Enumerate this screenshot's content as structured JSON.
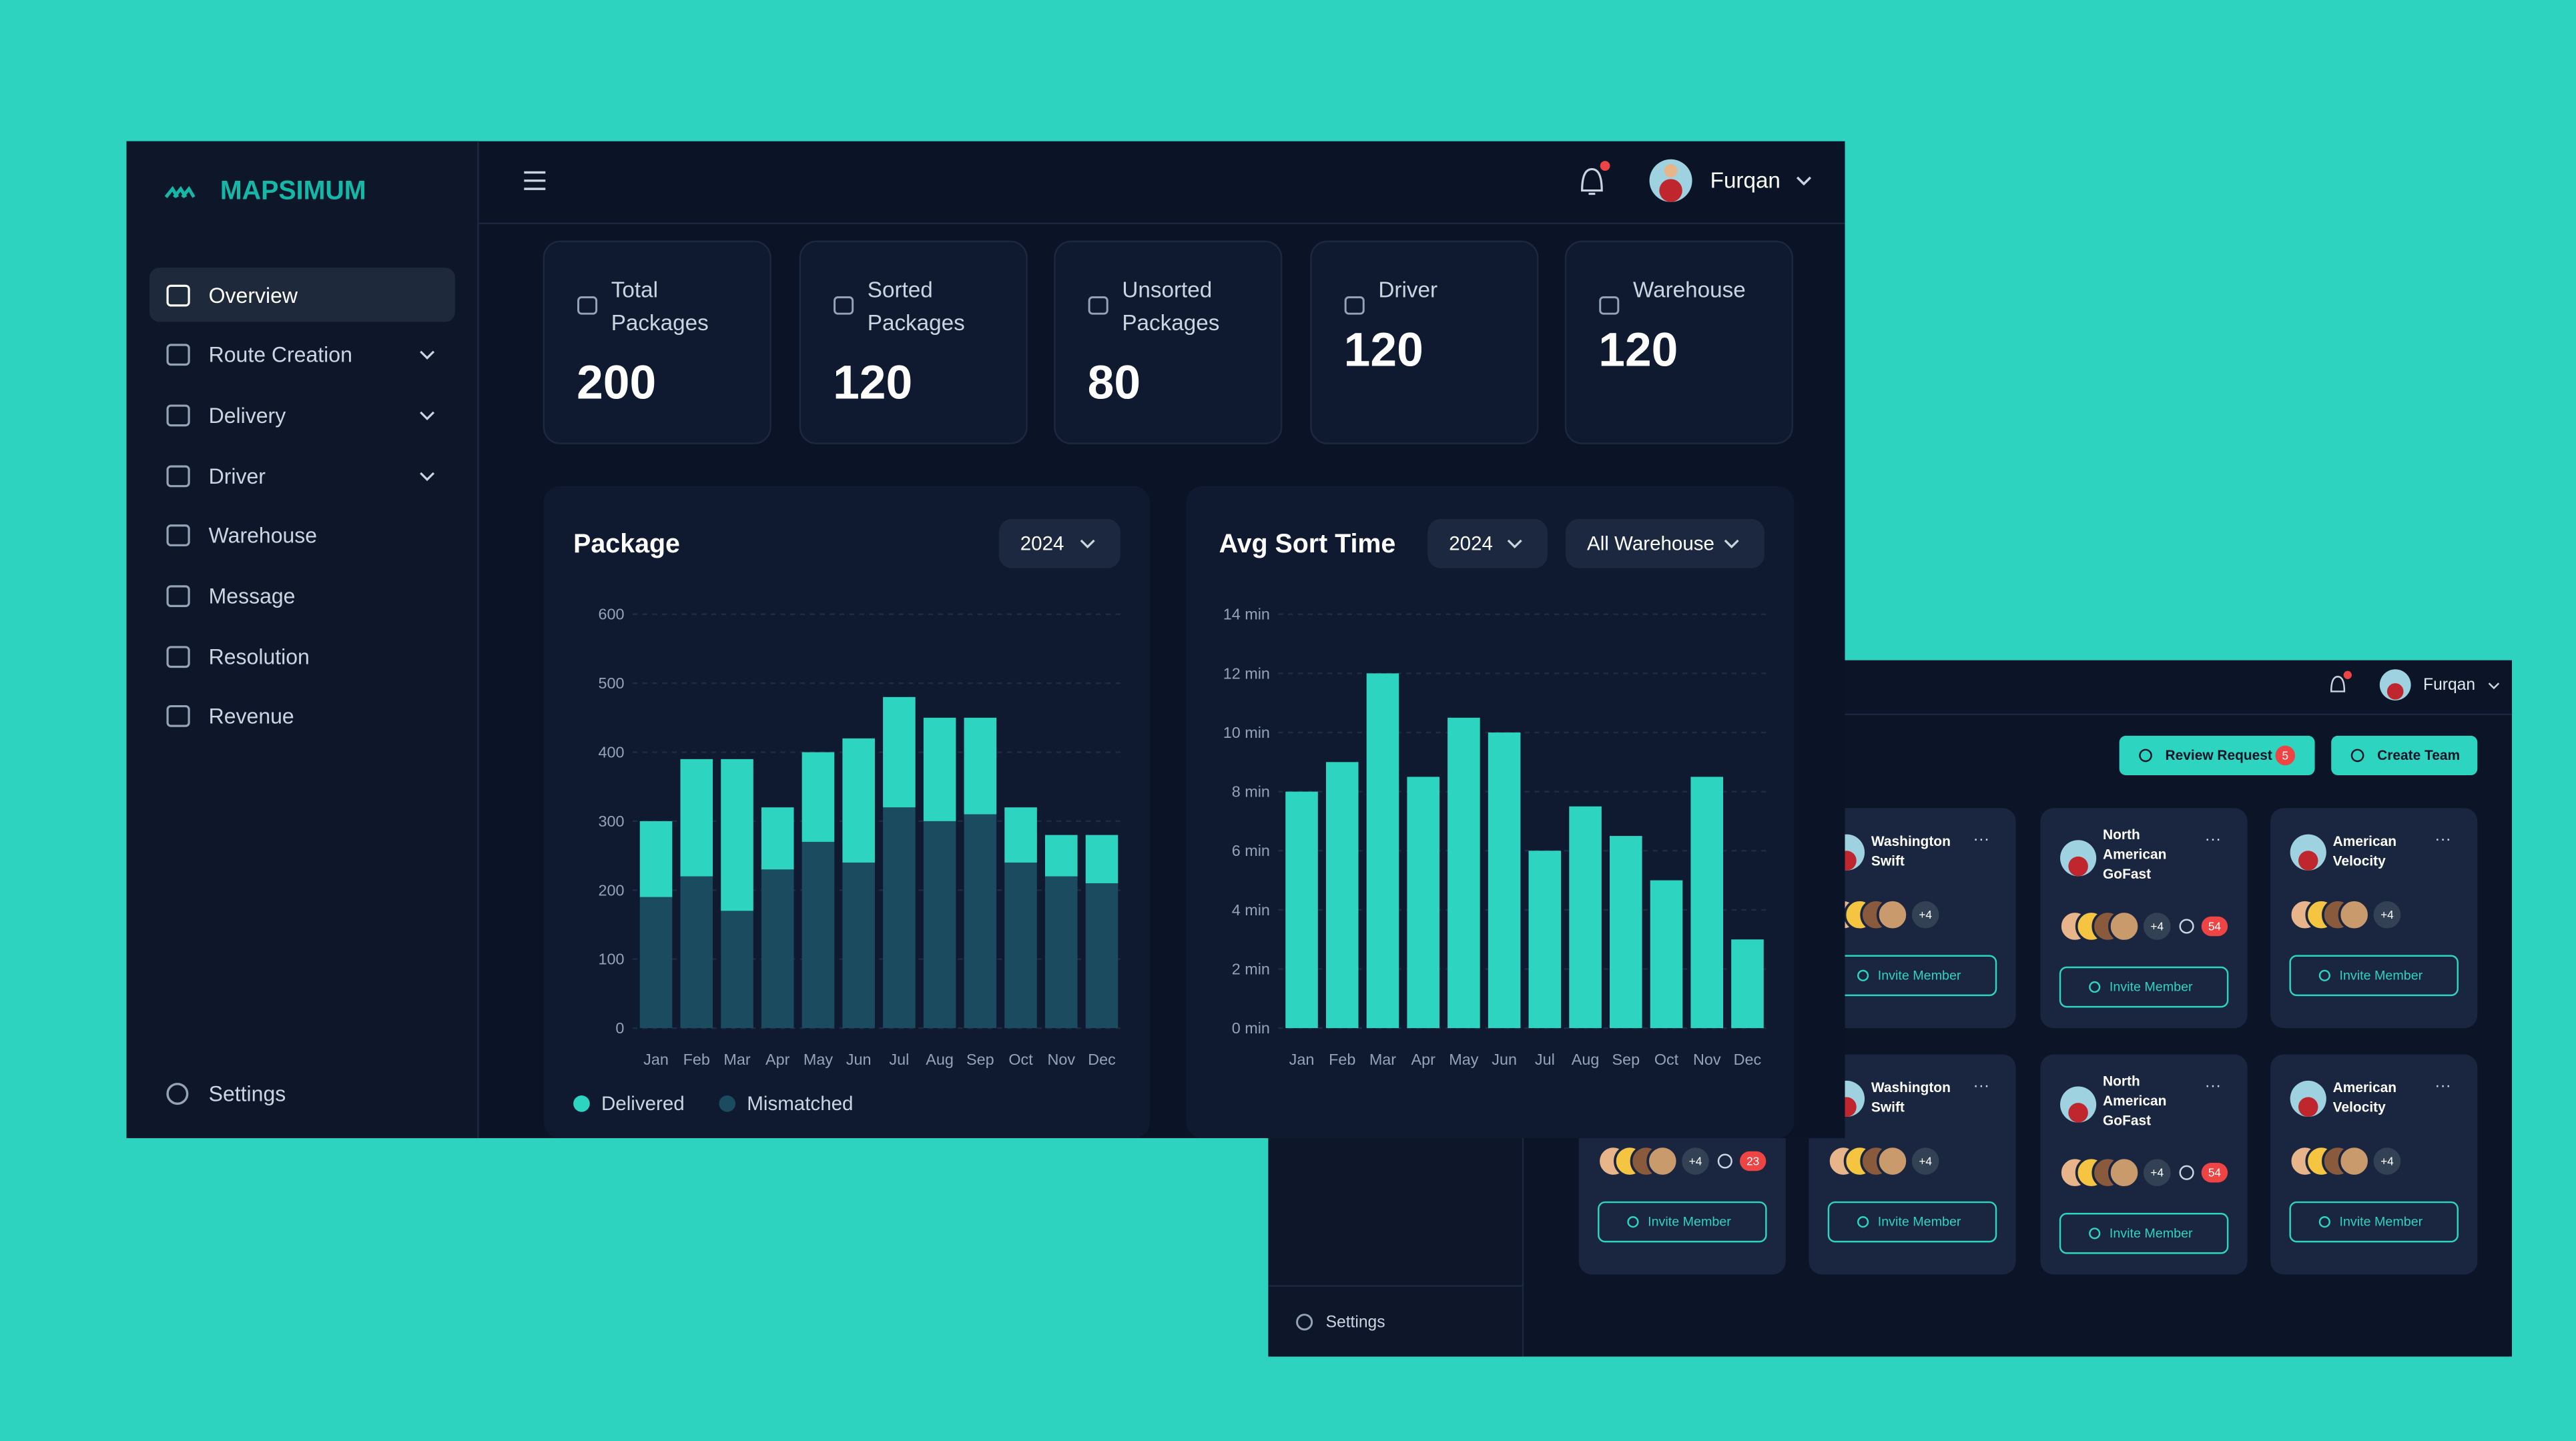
{
  "sidebar": {
    "brand": "MAPSIMUM",
    "menu": [
      "Overview",
      "Route Creation",
      "Delivery",
      "Driver",
      "Warehouse",
      "Message",
      "Resolution",
      "Revenue"
    ],
    "settings": "Settings"
  },
  "header": {
    "user": "Furqan"
  },
  "stats": [
    {
      "label": "Total Packages",
      "value": 200
    },
    {
      "label": "Sorted Packages",
      "value": 120
    },
    {
      "label": "Unsorted Packages",
      "value": 80
    },
    {
      "label": "Driver",
      "value": 120
    },
    {
      "label": "Warehouse",
      "value": 120
    }
  ],
  "chart_data": [
    {
      "type": "bar",
      "stacked": true,
      "title": "Package",
      "filters": [
        "2024"
      ],
      "categories": [
        "Jan",
        "Feb",
        "Mar",
        "Apr",
        "May",
        "Jun",
        "Jul",
        "Aug",
        "Sep",
        "Oct",
        "Nov",
        "Dec"
      ],
      "series": [
        {
          "name": "Delivered",
          "color": "#2dd4bf",
          "values": [
            110,
            170,
            220,
            90,
            130,
            180,
            160,
            150,
            140,
            80,
            60,
            70
          ]
        },
        {
          "name": "Mismatched",
          "color": "#1b4b5e",
          "values": [
            190,
            220,
            170,
            230,
            270,
            240,
            320,
            300,
            310,
            240,
            220,
            210
          ]
        }
      ],
      "ylim": [
        0,
        600
      ],
      "yticks": [
        0,
        100,
        200,
        300,
        400,
        500,
        600
      ],
      "grid": true,
      "legend": "bottom-left"
    },
    {
      "type": "bar",
      "title": "Avg Sort Time",
      "filters": [
        "2024",
        "All Warehouse"
      ],
      "categories": [
        "Jan",
        "Feb",
        "Mar",
        "Apr",
        "May",
        "Jun",
        "Jul",
        "Aug",
        "Sep",
        "Oct",
        "Nov",
        "Dec"
      ],
      "values": [
        8,
        9,
        12,
        8.5,
        10.5,
        10,
        6,
        7.5,
        6.5,
        5,
        8.5,
        3
      ],
      "color": "#2dd4bf",
      "ylim": [
        0,
        14
      ],
      "yticks": [
        {
          "value": 0,
          "label": "0 min"
        },
        {
          "value": 2,
          "label": "2 min"
        },
        {
          "value": 4,
          "label": "4 min"
        },
        {
          "value": 6,
          "label": "6 min"
        },
        {
          "value": 8,
          "label": "8 min"
        },
        {
          "value": 10,
          "label": "10 min"
        },
        {
          "value": 12,
          "label": "12 min"
        },
        {
          "value": 14,
          "label": "14 min"
        }
      ],
      "grid": true
    }
  ],
  "back_window": {
    "user": "Furqan",
    "buttons": [
      {
        "label": "Review Request",
        "badge": 5
      },
      {
        "label": "Create Team"
      }
    ],
    "settings": "Settings",
    "teams": [
      [
        {
          "name": "Washington Swift",
          "extra": "+4",
          "action": "Invite Member"
        },
        {
          "name": "North American GoFast",
          "extra": "+4",
          "comments": 54,
          "action": "Invite Member"
        },
        {
          "name": "American Velocity",
          "extra": "+4",
          "action": "Invite Member"
        }
      ],
      [
        {
          "extra": "+4",
          "comments": 23,
          "action": "Invite Member"
        },
        {
          "name": "Washington Swift",
          "extra": "+4",
          "action": "Invite Member"
        },
        {
          "name": "North American GoFast",
          "extra": "+4",
          "comments": 54,
          "action": "Invite Member"
        },
        {
          "name": "American Velocity",
          "extra": "+4",
          "action": "Invite Member"
        }
      ]
    ]
  }
}
